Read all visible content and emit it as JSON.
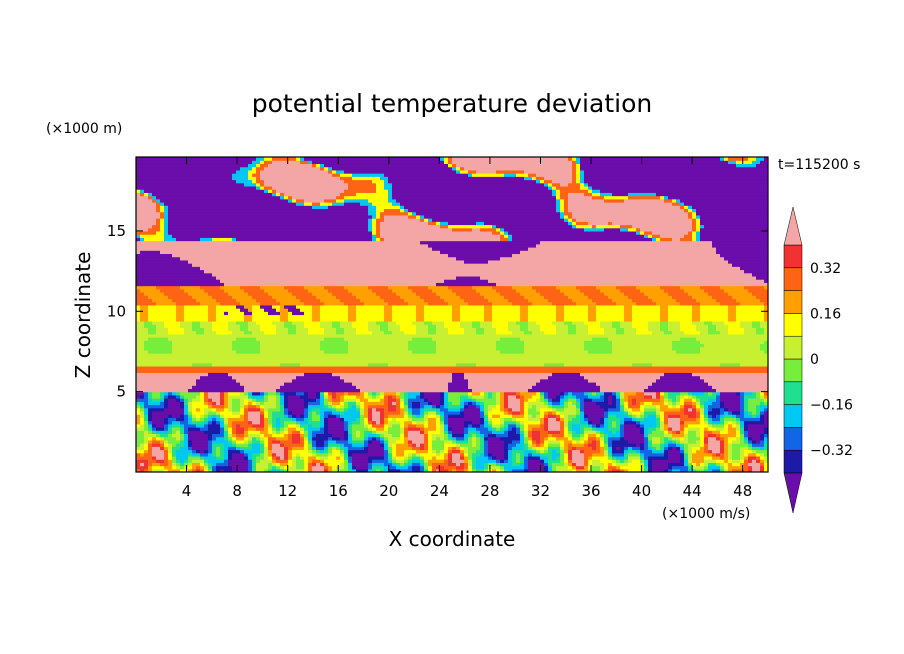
{
  "chart_data": {
    "type": "heatmap",
    "title": "potential temperature deviation",
    "xlabel": "X coordinate",
    "ylabel": "Z coordinate",
    "x_unit": "(×1000 m/s)",
    "y_unit": "(×1000 m)",
    "time_label": "t=115200 s",
    "xlim": [
      0,
      50
    ],
    "ylim": [
      0,
      19.6
    ],
    "x_ticks": [
      4,
      8,
      12,
      16,
      20,
      24,
      28,
      32,
      36,
      40,
      44,
      48
    ],
    "y_ticks": [
      5,
      10,
      15
    ],
    "colorbar": {
      "levels": [
        -0.4,
        -0.32,
        -0.24,
        -0.16,
        -0.08,
        0,
        0.08,
        0.16,
        0.24,
        0.32,
        0.4
      ],
      "tick_values": [
        -0.32,
        -0.16,
        0,
        0.16,
        0.32
      ],
      "tick_labels": [
        "−0.32",
        "−0.16",
        "0",
        "0.16",
        "0.32"
      ],
      "colors": [
        "#6a0daa",
        "#1c1aa6",
        "#1464e6",
        "#00c8f0",
        "#20e090",
        "#78ee3c",
        "#c8f032",
        "#ffff00",
        "#ffa000",
        "#ff6414",
        "#f03232",
        "#f4a6a6"
      ],
      "extend": "both"
    },
    "layers": [
      {
        "z_range": [
          18.3,
          19.6
        ],
        "description": "mixed",
        "value": 0.3
      },
      {
        "z_range": [
          11.6,
          18.3
        ],
        "description": "mixed",
        "value": 0.45
      },
      {
        "z_range": [
          10.5,
          11.6
        ],
        "value": 0.24
      },
      {
        "z_range": [
          9.5,
          10.5
        ],
        "value": 0.12
      },
      {
        "z_range": [
          8.6,
          9.5
        ],
        "value": 0.04
      },
      {
        "z_range": [
          6.6,
          8.6
        ],
        "value": 0.02
      },
      {
        "z_range": [
          6.2,
          6.6
        ],
        "value": 0.3
      },
      {
        "z_range": [
          5.0,
          6.2
        ],
        "value": 0.45
      },
      {
        "z_range": [
          0,
          5.0
        ],
        "description": "mixed",
        "value": -0.05
      }
    ]
  }
}
